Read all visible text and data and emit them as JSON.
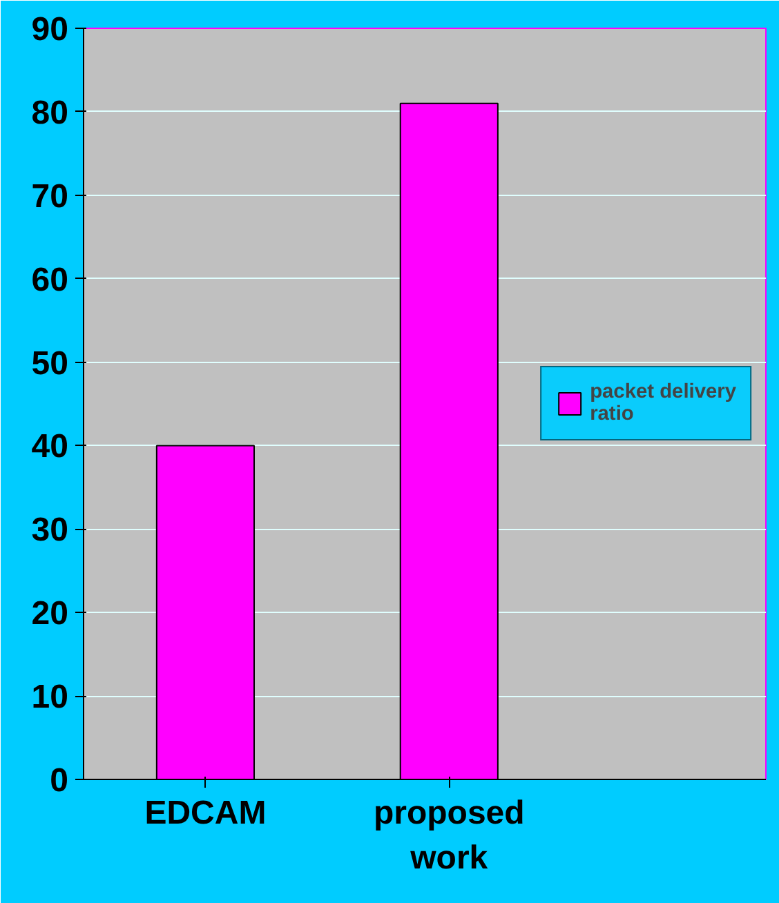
{
  "chart_data": {
    "type": "bar",
    "categories": [
      "EDCAM",
      "proposed work"
    ],
    "series": [
      {
        "name": "packet delivery ratio",
        "color": "#ff00ff",
        "values": [
          40,
          81
        ]
      }
    ],
    "ylim": [
      0,
      90
    ],
    "yticks": [
      0,
      10,
      20,
      30,
      40,
      50,
      60,
      70,
      80,
      90
    ],
    "grid": "y",
    "legend": "right"
  }
}
